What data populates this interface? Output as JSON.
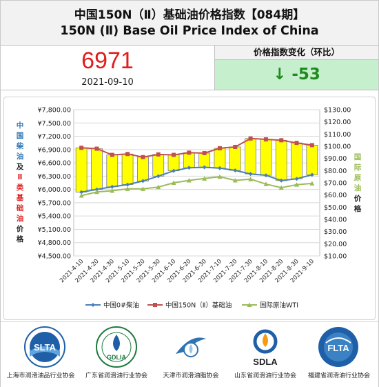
{
  "header": {
    "title_cn": "中国150N（Ⅱ）基础油价格指数【084期】",
    "title_en": "150N (Ⅱ) Base Oil Price Index of China"
  },
  "index": {
    "value": "6971",
    "date": "2021-09-10"
  },
  "change": {
    "label": "价格指数变化（环比）",
    "value": "↓ -53"
  },
  "chart_data": {
    "type": "line",
    "x": [
      "2021-4-10",
      "2021-4-20",
      "2021-4-30",
      "2021-5-10",
      "2021-5-20",
      "2021-5-30",
      "2021-6-10",
      "2021-6-20",
      "2021-6-30",
      "2021-7-10",
      "2021-7-20",
      "2021-7-30",
      "2021-8-10",
      "2021-8-20",
      "2021-8-30",
      "2021-9-10"
    ],
    "left_axis": {
      "ylim": [
        4500,
        7800
      ],
      "ticks": [
        "¥7,800.00",
        "¥7,500.00",
        "¥7,200.00",
        "¥6,900.00",
        "¥6,600.00",
        "¥6,300.00",
        "¥6,000.00",
        "¥5,700.00",
        "¥5,400.00",
        "¥5,100.00",
        "¥4,800.00",
        "¥4,500.00"
      ],
      "tick_values": [
        7800,
        7500,
        7200,
        6900,
        6600,
        6300,
        6000,
        5700,
        5400,
        5100,
        4800,
        4500
      ],
      "label_parts": [
        {
          "text": "中国柴油",
          "color": "#2e74b5"
        },
        {
          "text": "及",
          "color": "#222222"
        },
        {
          "text": "Ⅱ类基础油",
          "color": "#e01e1e"
        },
        {
          "text": "价格",
          "color": "#222222"
        }
      ]
    },
    "right_axis": {
      "ylim": [
        10,
        130
      ],
      "ticks": [
        "$130.00",
        "$120.00",
        "$110.00",
        "$100.00",
        "$90.00",
        "$80.00",
        "$70.00",
        "$60.00",
        "$50.00",
        "$40.00",
        "$30.00",
        "$20.00",
        "$10.00"
      ],
      "tick_values": [
        130,
        120,
        110,
        100,
        90,
        80,
        70,
        60,
        50,
        40,
        30,
        20,
        10
      ],
      "label_parts": [
        {
          "text": "国际原油",
          "color": "#9bbb59"
        },
        {
          "text": "价格",
          "color": "#222222"
        }
      ]
    },
    "series": [
      {
        "name": "中国0#柴油",
        "axis": "left",
        "color": "#4a7ebb",
        "values": [
          5940,
          6000,
          6060,
          6110,
          6190,
          6300,
          6420,
          6490,
          6500,
          6480,
          6430,
          6350,
          6320,
          6200,
          6240,
          6330
        ]
      },
      {
        "name": "中国150N（Ⅱ）基础油",
        "axis": "left",
        "color": "#c0504d",
        "values": [
          6940,
          6920,
          6780,
          6800,
          6730,
          6790,
          6780,
          6830,
          6820,
          6930,
          6960,
          7150,
          7130,
          7110,
          7050,
          7000
        ]
      },
      {
        "name": "国际原油WTI",
        "axis": "right",
        "color": "#9bbb59",
        "values": [
          59.5,
          62.5,
          63.5,
          65,
          65,
          66.5,
          70,
          72,
          73.5,
          75,
          72,
          73,
          69,
          66,
          68.5,
          69.5
        ]
      }
    ],
    "bars_note": "",
    "legend_position": "bottom",
    "grid": true
  },
  "footer": {
    "associations": [
      {
        "name": "上海市润滑油品行业协会",
        "logo": "SLTA",
        "logo_icon": "slta-logo"
      },
      {
        "name": "广东省润滑油行业协会",
        "logo": "GDLIA",
        "logo_icon": "gdlia-logo"
      },
      {
        "name": "天津市润滑油脂协会",
        "logo": "",
        "logo_icon": "tianjin-logo"
      },
      {
        "name": "山东省润滑油行业协会",
        "logo": "SDLA",
        "logo_icon": "sdla-logo"
      },
      {
        "name": "福建省润滑油行业协会",
        "logo": "FLTA",
        "logo_icon": "flta-logo"
      }
    ]
  }
}
